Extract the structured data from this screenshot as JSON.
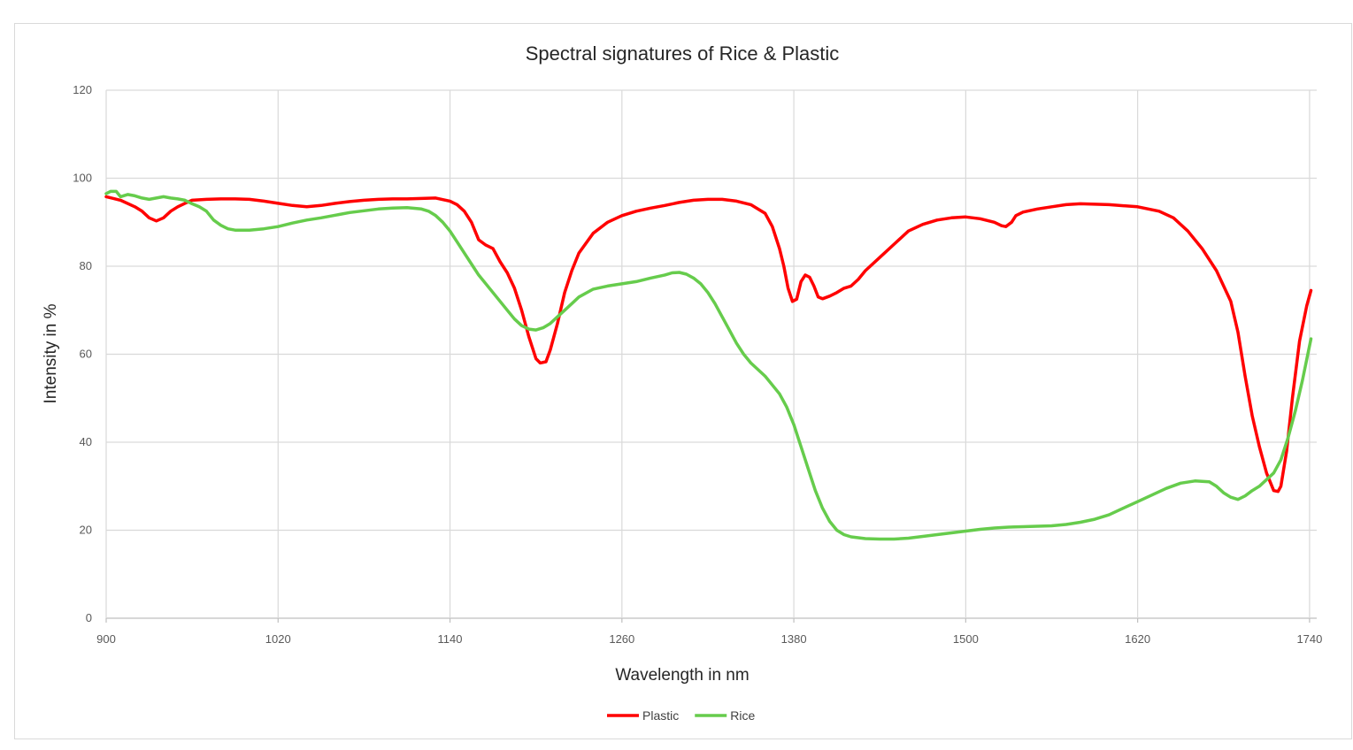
{
  "chart_data": {
    "type": "line",
    "title": "Spectral signatures of  Rice & Plastic",
    "xlabel": "Wavelength in nm",
    "ylabel": "Intensity in %",
    "xlim": [
      900,
      1745
    ],
    "ylim": [
      0,
      120
    ],
    "x_ticks": [
      900,
      1020,
      1140,
      1260,
      1380,
      1500,
      1620,
      1740
    ],
    "y_ticks": [
      0,
      20,
      40,
      60,
      80,
      100,
      120
    ],
    "grid": true,
    "legend_position": "bottom",
    "series": [
      {
        "name": "Plastic",
        "color": "#ff0000",
        "points": [
          [
            900,
            95.8
          ],
          [
            910,
            95
          ],
          [
            920,
            93.5
          ],
          [
            925,
            92.5
          ],
          [
            930,
            91
          ],
          [
            935,
            90.3
          ],
          [
            940,
            91
          ],
          [
            945,
            92.5
          ],
          [
            950,
            93.5
          ],
          [
            955,
            94.3
          ],
          [
            960,
            95
          ],
          [
            970,
            95.2
          ],
          [
            980,
            95.3
          ],
          [
            990,
            95.3
          ],
          [
            1000,
            95.2
          ],
          [
            1010,
            94.8
          ],
          [
            1020,
            94.3
          ],
          [
            1030,
            93.8
          ],
          [
            1040,
            93.5
          ],
          [
            1050,
            93.8
          ],
          [
            1060,
            94.3
          ],
          [
            1070,
            94.7
          ],
          [
            1080,
            95
          ],
          [
            1090,
            95.2
          ],
          [
            1100,
            95.3
          ],
          [
            1110,
            95.3
          ],
          [
            1120,
            95.4
          ],
          [
            1130,
            95.5
          ],
          [
            1140,
            94.8
          ],
          [
            1145,
            94
          ],
          [
            1150,
            92.5
          ],
          [
            1155,
            90
          ],
          [
            1160,
            86
          ],
          [
            1165,
            84.8
          ],
          [
            1170,
            84
          ],
          [
            1175,
            81
          ],
          [
            1180,
            78.5
          ],
          [
            1185,
            75
          ],
          [
            1190,
            70
          ],
          [
            1195,
            64
          ],
          [
            1200,
            59
          ],
          [
            1203,
            58
          ],
          [
            1207,
            58.3
          ],
          [
            1210,
            61
          ],
          [
            1215,
            67
          ],
          [
            1220,
            74
          ],
          [
            1225,
            79
          ],
          [
            1230,
            83
          ],
          [
            1240,
            87.5
          ],
          [
            1250,
            90
          ],
          [
            1260,
            91.5
          ],
          [
            1270,
            92.5
          ],
          [
            1280,
            93.2
          ],
          [
            1290,
            93.8
          ],
          [
            1300,
            94.5
          ],
          [
            1310,
            95
          ],
          [
            1320,
            95.2
          ],
          [
            1330,
            95.2
          ],
          [
            1340,
            94.8
          ],
          [
            1350,
            94
          ],
          [
            1360,
            92
          ],
          [
            1365,
            89
          ],
          [
            1370,
            84
          ],
          [
            1373,
            80
          ],
          [
            1376,
            75
          ],
          [
            1379,
            72
          ],
          [
            1382,
            72.5
          ],
          [
            1385,
            76.5
          ],
          [
            1388,
            78
          ],
          [
            1391,
            77.5
          ],
          [
            1394,
            75.5
          ],
          [
            1397,
            73
          ],
          [
            1400,
            72.6
          ],
          [
            1405,
            73.2
          ],
          [
            1410,
            74
          ],
          [
            1415,
            75
          ],
          [
            1420,
            75.5
          ],
          [
            1425,
            77
          ],
          [
            1430,
            79
          ],
          [
            1440,
            82
          ],
          [
            1450,
            85
          ],
          [
            1460,
            88
          ],
          [
            1470,
            89.5
          ],
          [
            1480,
            90.5
          ],
          [
            1490,
            91
          ],
          [
            1500,
            91.2
          ],
          [
            1510,
            90.8
          ],
          [
            1520,
            90
          ],
          [
            1525,
            89.2
          ],
          [
            1528,
            89
          ],
          [
            1532,
            90
          ],
          [
            1535,
            91.5
          ],
          [
            1540,
            92.3
          ],
          [
            1550,
            93
          ],
          [
            1560,
            93.5
          ],
          [
            1570,
            94
          ],
          [
            1580,
            94.2
          ],
          [
            1600,
            94
          ],
          [
            1620,
            93.5
          ],
          [
            1635,
            92.5
          ],
          [
            1645,
            91
          ],
          [
            1655,
            88
          ],
          [
            1665,
            84
          ],
          [
            1675,
            79
          ],
          [
            1685,
            72
          ],
          [
            1690,
            65
          ],
          [
            1695,
            55
          ],
          [
            1700,
            46
          ],
          [
            1705,
            39
          ],
          [
            1710,
            33
          ],
          [
            1715,
            29
          ],
          [
            1718,
            28.8
          ],
          [
            1720,
            30
          ],
          [
            1724,
            38
          ],
          [
            1728,
            50
          ],
          [
            1733,
            63
          ],
          [
            1738,
            71
          ],
          [
            1741,
            74.5
          ]
        ]
      },
      {
        "name": "Rice",
        "color": "#66cc4c",
        "points": [
          [
            900,
            96.5
          ],
          [
            903,
            97
          ],
          [
            907,
            97
          ],
          [
            910,
            95.8
          ],
          [
            915,
            96.3
          ],
          [
            920,
            96
          ],
          [
            925,
            95.5
          ],
          [
            930,
            95.2
          ],
          [
            935,
            95.5
          ],
          [
            940,
            95.8
          ],
          [
            945,
            95.5
          ],
          [
            950,
            95.3
          ],
          [
            955,
            95
          ],
          [
            960,
            94.2
          ],
          [
            965,
            93.5
          ],
          [
            970,
            92.5
          ],
          [
            975,
            90.5
          ],
          [
            980,
            89.3
          ],
          [
            985,
            88.5
          ],
          [
            990,
            88.2
          ],
          [
            1000,
            88.2
          ],
          [
            1010,
            88.5
          ],
          [
            1020,
            89
          ],
          [
            1030,
            89.8
          ],
          [
            1040,
            90.5
          ],
          [
            1050,
            91
          ],
          [
            1060,
            91.6
          ],
          [
            1070,
            92.2
          ],
          [
            1080,
            92.6
          ],
          [
            1090,
            93
          ],
          [
            1100,
            93.2
          ],
          [
            1110,
            93.3
          ],
          [
            1120,
            93
          ],
          [
            1125,
            92.5
          ],
          [
            1130,
            91.5
          ],
          [
            1135,
            90
          ],
          [
            1140,
            88
          ],
          [
            1145,
            85.5
          ],
          [
            1150,
            83
          ],
          [
            1155,
            80.5
          ],
          [
            1160,
            78
          ],
          [
            1170,
            74
          ],
          [
            1180,
            70
          ],
          [
            1185,
            68
          ],
          [
            1190,
            66.5
          ],
          [
            1195,
            65.7
          ],
          [
            1200,
            65.5
          ],
          [
            1205,
            66
          ],
          [
            1210,
            67
          ],
          [
            1215,
            68.5
          ],
          [
            1220,
            70
          ],
          [
            1225,
            71.5
          ],
          [
            1230,
            73
          ],
          [
            1240,
            74.8
          ],
          [
            1250,
            75.5
          ],
          [
            1260,
            76
          ],
          [
            1270,
            76.5
          ],
          [
            1280,
            77.3
          ],
          [
            1290,
            78
          ],
          [
            1295,
            78.5
          ],
          [
            1300,
            78.6
          ],
          [
            1305,
            78.2
          ],
          [
            1310,
            77.3
          ],
          [
            1315,
            76
          ],
          [
            1320,
            74
          ],
          [
            1325,
            71.5
          ],
          [
            1330,
            68.5
          ],
          [
            1335,
            65.5
          ],
          [
            1340,
            62.5
          ],
          [
            1345,
            60
          ],
          [
            1350,
            58
          ],
          [
            1355,
            56.5
          ],
          [
            1360,
            55
          ],
          [
            1365,
            53
          ],
          [
            1370,
            51
          ],
          [
            1375,
            48
          ],
          [
            1380,
            44
          ],
          [
            1385,
            39
          ],
          [
            1390,
            34
          ],
          [
            1395,
            29
          ],
          [
            1400,
            25
          ],
          [
            1405,
            22
          ],
          [
            1410,
            20
          ],
          [
            1415,
            19
          ],
          [
            1420,
            18.5
          ],
          [
            1430,
            18.1
          ],
          [
            1440,
            18
          ],
          [
            1450,
            18
          ],
          [
            1460,
            18.2
          ],
          [
            1470,
            18.6
          ],
          [
            1480,
            19
          ],
          [
            1490,
            19.4
          ],
          [
            1500,
            19.8
          ],
          [
            1510,
            20.2
          ],
          [
            1520,
            20.5
          ],
          [
            1530,
            20.7
          ],
          [
            1540,
            20.8
          ],
          [
            1550,
            20.9
          ],
          [
            1560,
            21
          ],
          [
            1570,
            21.3
          ],
          [
            1580,
            21.8
          ],
          [
            1590,
            22.5
          ],
          [
            1600,
            23.5
          ],
          [
            1610,
            25
          ],
          [
            1620,
            26.5
          ],
          [
            1630,
            28
          ],
          [
            1640,
            29.5
          ],
          [
            1650,
            30.7
          ],
          [
            1660,
            31.2
          ],
          [
            1670,
            31
          ],
          [
            1675,
            30
          ],
          [
            1680,
            28.5
          ],
          [
            1685,
            27.5
          ],
          [
            1690,
            27
          ],
          [
            1695,
            27.8
          ],
          [
            1700,
            29
          ],
          [
            1705,
            30
          ],
          [
            1710,
            31.5
          ],
          [
            1715,
            33
          ],
          [
            1720,
            36
          ],
          [
            1725,
            41
          ],
          [
            1730,
            47
          ],
          [
            1735,
            54
          ],
          [
            1741,
            63.5
          ]
        ]
      }
    ]
  }
}
